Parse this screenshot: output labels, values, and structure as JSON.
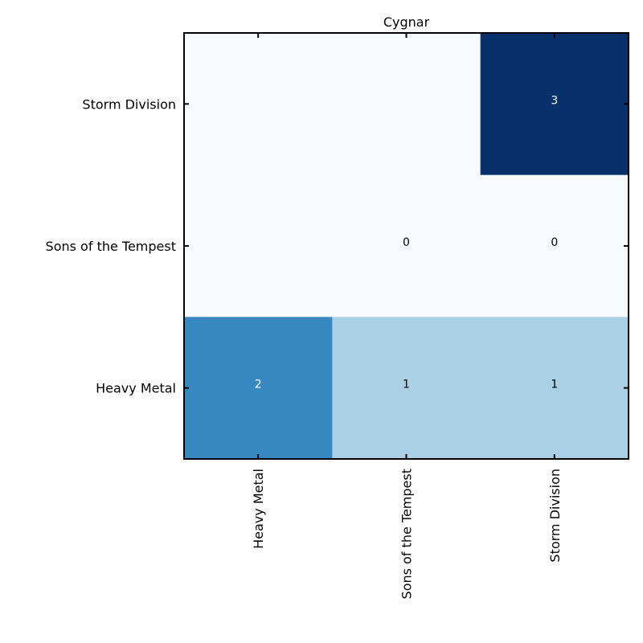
{
  "chart_data": {
    "type": "heatmap",
    "title": "Cygnar",
    "x_categories": [
      "Heavy Metal",
      "Sons of the Tempest",
      "Storm Division"
    ],
    "y_categories": [
      "Storm Division",
      "Sons of the Tempest",
      "Heavy Metal"
    ],
    "cells": [
      {
        "row": "Storm Division",
        "col": "Heavy Metal",
        "value": null,
        "label": ""
      },
      {
        "row": "Storm Division",
        "col": "Sons of the Tempest",
        "value": null,
        "label": ""
      },
      {
        "row": "Storm Division",
        "col": "Storm Division",
        "value": 3,
        "label": "3"
      },
      {
        "row": "Sons of the Tempest",
        "col": "Heavy Metal",
        "value": null,
        "label": ""
      },
      {
        "row": "Sons of the Tempest",
        "col": "Sons of the Tempest",
        "value": 0,
        "label": "0"
      },
      {
        "row": "Sons of the Tempest",
        "col": "Storm Division",
        "value": 0,
        "label": "0"
      },
      {
        "row": "Heavy Metal",
        "col": "Heavy Metal",
        "value": 2,
        "label": "2"
      },
      {
        "row": "Heavy Metal",
        "col": "Sons of the Tempest",
        "value": 1,
        "label": "1"
      },
      {
        "row": "Heavy Metal",
        "col": "Storm Division",
        "value": 1,
        "label": "1"
      }
    ],
    "value_range": [
      0,
      3
    ],
    "colormap": "Blues",
    "cell_colors": {
      "empty": "#f7fbff",
      "0": "#f7fbff",
      "1": "#abd0e6",
      "2": "#3787c0",
      "3": "#08306b"
    },
    "text_colors": {
      "light_cells": "#000000",
      "dark_cells": "#ffffff"
    },
    "grid": false,
    "xlabel": "",
    "ylabel": ""
  }
}
